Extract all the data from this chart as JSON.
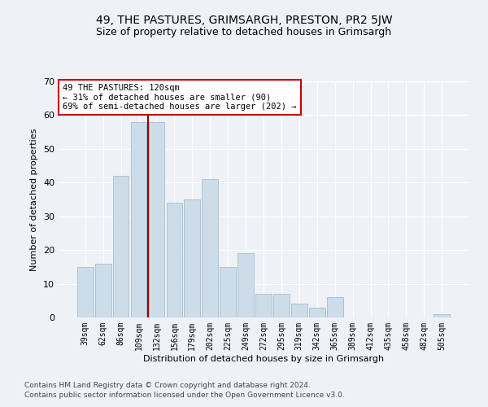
{
  "title": "49, THE PASTURES, GRIMSARGH, PRESTON, PR2 5JW",
  "subtitle": "Size of property relative to detached houses in Grimsargh",
  "xlabel": "Distribution of detached houses by size in Grimsargh",
  "ylabel": "Number of detached properties",
  "bar_labels": [
    "39sqm",
    "62sqm",
    "86sqm",
    "109sqm",
    "132sqm",
    "156sqm",
    "179sqm",
    "202sqm",
    "225sqm",
    "249sqm",
    "272sqm",
    "295sqm",
    "319sqm",
    "342sqm",
    "365sqm",
    "389sqm",
    "412sqm",
    "435sqm",
    "458sqm",
    "482sqm",
    "505sqm"
  ],
  "bar_values": [
    15,
    16,
    42,
    58,
    58,
    34,
    35,
    41,
    15,
    19,
    7,
    7,
    4,
    3,
    6,
    0,
    0,
    0,
    0,
    0,
    1
  ],
  "bar_color": "#ccdce8",
  "bar_edge_color": "#aabccc",
  "vline_x": 3.5,
  "vline_color": "#990000",
  "annotation_text": "49 THE PASTURES: 120sqm\n← 31% of detached houses are smaller (90)\n69% of semi-detached houses are larger (202) →",
  "annotation_box_facecolor": "#ffffff",
  "annotation_box_edgecolor": "#cc0000",
  "ylim": [
    0,
    70
  ],
  "yticks": [
    0,
    10,
    20,
    30,
    40,
    50,
    60,
    70
  ],
  "footer_line1": "Contains HM Land Registry data © Crown copyright and database right 2024.",
  "footer_line2": "Contains public sector information licensed under the Open Government Licence v3.0.",
  "plot_bg_color": "#eef2f7",
  "fig_bg_color": "#eef2f7",
  "grid_color": "#ffffff",
  "title_fontsize": 10,
  "subtitle_fontsize": 9,
  "axis_label_fontsize": 8,
  "tick_fontsize": 7,
  "footer_fontsize": 6.5,
  "annotation_fontsize": 7.5
}
